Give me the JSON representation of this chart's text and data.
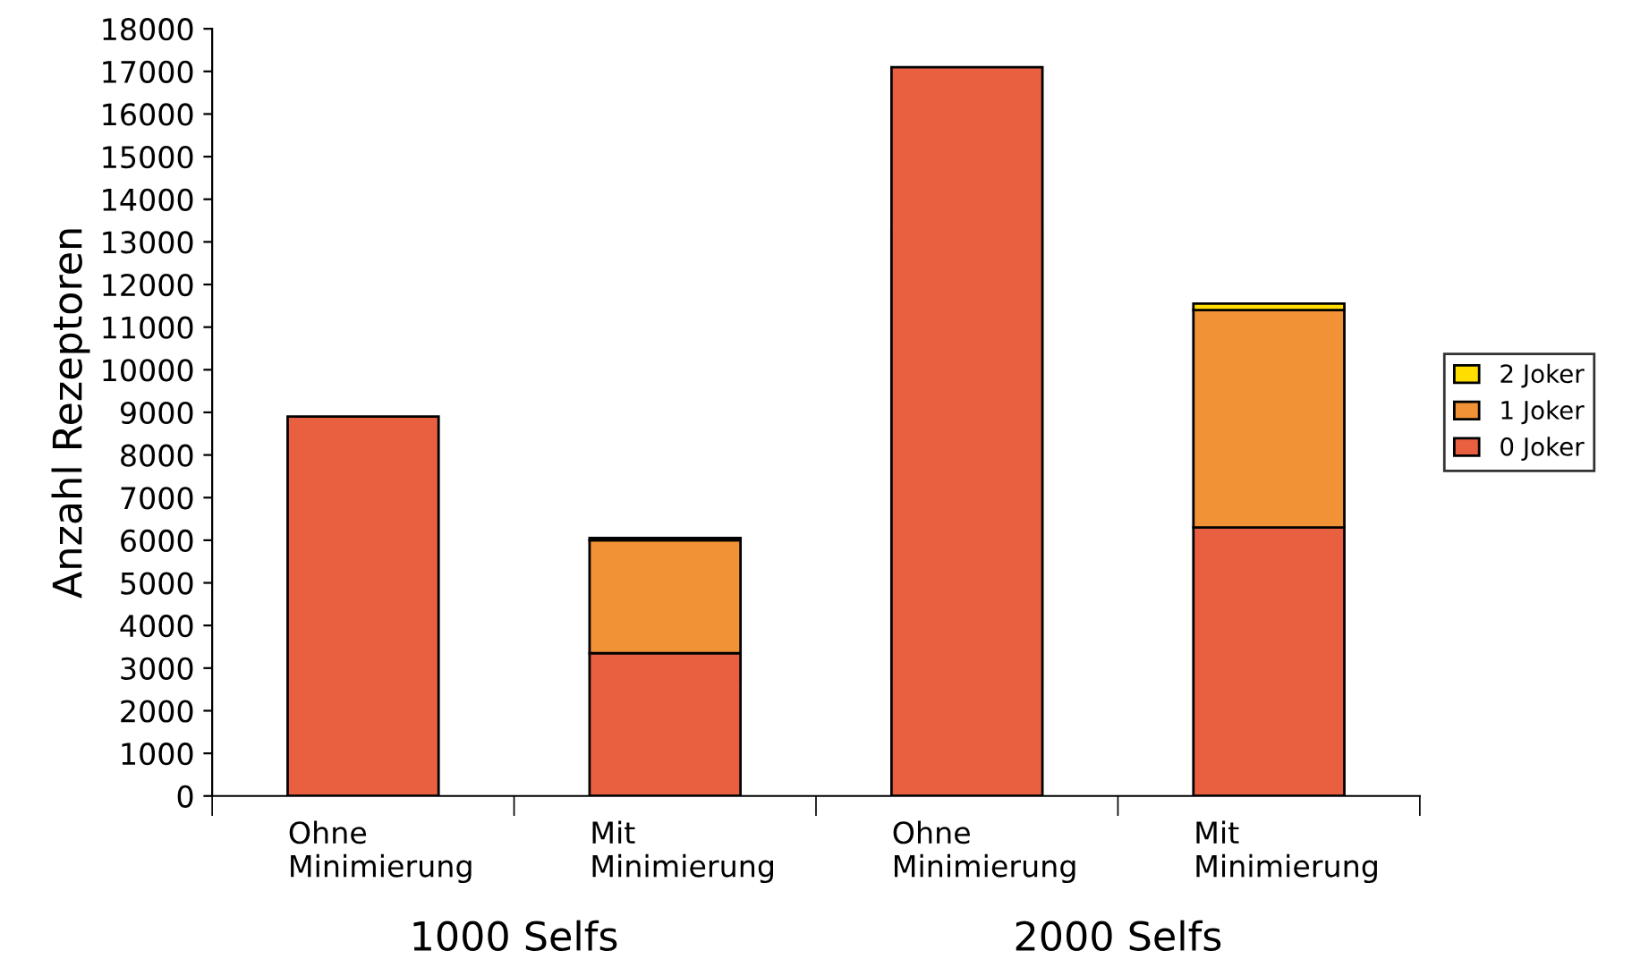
{
  "chart_data": {
    "type": "bar",
    "stacked": true,
    "ylabel": "Anzahl Rezeptoren",
    "categories": [
      "Ohne\nMinimierung",
      "Mit\nMinimierung",
      "Ohne\nMinimierung",
      "Mit\nMinimierung"
    ],
    "series": [
      {
        "name": "0 Joker",
        "color": "#e96040",
        "values": [
          8900,
          3350,
          17100,
          6300
        ]
      },
      {
        "name": "1 Joker",
        "color": "#f09235",
        "values": [
          null,
          2650,
          null,
          5100
        ]
      },
      {
        "name": "2 Joker",
        "color": "#ffdd00",
        "values": [
          null,
          50,
          null,
          150
        ]
      }
    ],
    "ylim": [
      0,
      18000
    ],
    "yticks": [
      0,
      1000,
      2000,
      3000,
      4000,
      5000,
      6000,
      7000,
      8000,
      9000,
      10000,
      11000,
      12000,
      13000,
      14000,
      15000,
      16000,
      17000,
      18000
    ],
    "annotations": [
      "1000 Selfs",
      "2000 Selfs"
    ],
    "grid": false,
    "legend": "right"
  }
}
